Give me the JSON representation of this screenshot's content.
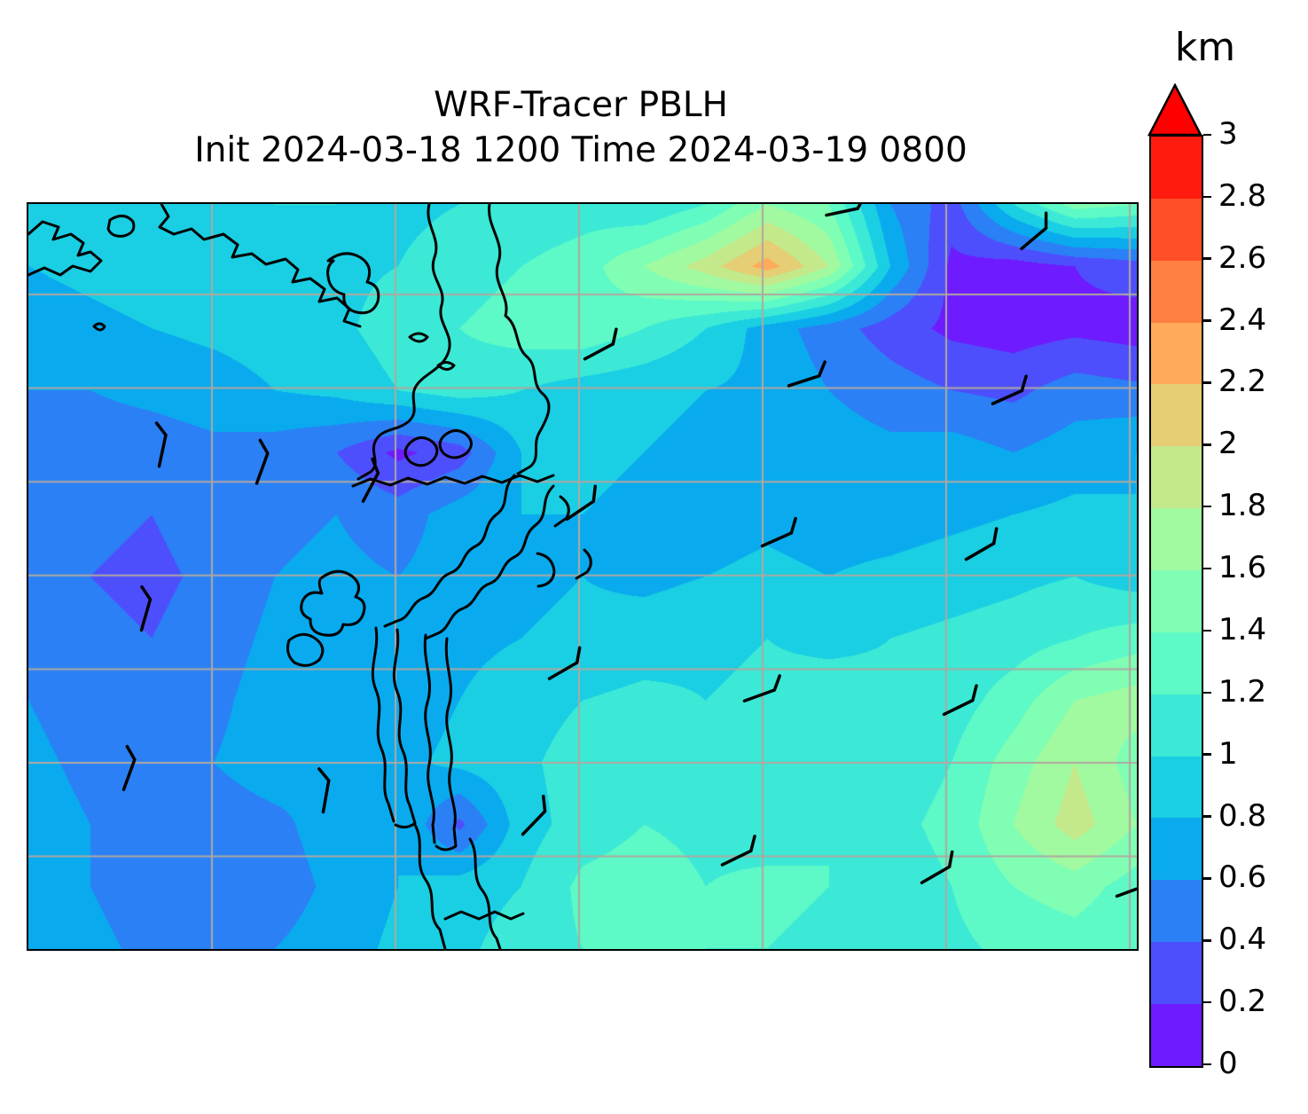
{
  "title": {
    "line1": "WRF-Tracer PBLH",
    "line2": "Init 2024-03-18 1200 Time 2024-03-19 0800"
  },
  "colorbar": {
    "label": "km",
    "min": 0,
    "max": 3,
    "step": 0.2,
    "tick_labels": [
      "0",
      "0.2",
      "0.4",
      "0.6",
      "0.8",
      "1",
      "1.2",
      "1.4",
      "1.6",
      "1.8",
      "2",
      "2.2",
      "2.4",
      "2.6",
      "2.8",
      "3"
    ],
    "colors": [
      "#6E1BFF",
      "#4D4FFC",
      "#2B80F6",
      "#09ABEE",
      "#1ACEE3",
      "#3BE9D6",
      "#5DF9C6",
      "#80FFB4",
      "#A1F9A0",
      "#C3E98B",
      "#E5CE74",
      "#FFAB5B",
      "#FF8042",
      "#FF4F28",
      "#FF1B0D"
    ],
    "over_color": "#FF0000",
    "extend": "max"
  },
  "chart_data": {
    "type": "heatmap",
    "title": "WRF-Tracer PBLH",
    "subtitle": "Init 2024-03-18 1200 Time 2024-03-19 0800",
    "field": "planetary boundary layer height",
    "units": "km",
    "colormap": "rainbow",
    "levels": [
      0,
      0.2,
      0.4,
      0.6,
      0.8,
      1,
      1.2,
      1.4,
      1.6,
      1.8,
      2,
      2.2,
      2.4,
      2.6,
      2.8,
      3
    ],
    "grid_on": true,
    "legend_position": "right-colorbar",
    "grid": {
      "nrows": 13,
      "ncols": 19,
      "values_km": [
        [
          0.95,
          0.9,
          0.85,
          0.9,
          1.0,
          1.0,
          0.95,
          1.0,
          1.05,
          1.1,
          1.0,
          1.2,
          1.6,
          1.4,
          0.6,
          0.3,
          1.0,
          1.5,
          1.4
        ],
        [
          0.8,
          0.85,
          0.9,
          0.95,
          1.0,
          0.95,
          1.0,
          1.1,
          1.2,
          1.3,
          1.6,
          1.9,
          2.3,
          1.8,
          0.8,
          0.15,
          0.1,
          0.2,
          0.3
        ],
        [
          0.7,
          0.75,
          0.8,
          0.85,
          0.9,
          0.95,
          1.1,
          1.2,
          1.3,
          1.35,
          1.2,
          1.0,
          0.7,
          0.5,
          0.3,
          0.15,
          0.1,
          0.15,
          0.1
        ],
        [
          0.6,
          0.6,
          0.65,
          0.7,
          0.8,
          0.85,
          1.0,
          1.1,
          1.0,
          0.9,
          0.85,
          0.8,
          0.75,
          0.6,
          0.5,
          0.4,
          0.35,
          0.5,
          0.45
        ],
        [
          0.55,
          0.5,
          0.5,
          0.55,
          0.5,
          0.4,
          0.15,
          0.3,
          0.8,
          0.85,
          0.8,
          0.75,
          0.8,
          0.7,
          0.65,
          0.7,
          0.6,
          0.7,
          0.8
        ],
        [
          0.5,
          0.45,
          0.4,
          0.5,
          0.55,
          0.6,
          0.5,
          0.7,
          0.8,
          0.8,
          0.75,
          0.7,
          0.75,
          0.7,
          0.7,
          0.75,
          0.8,
          0.85,
          0.8
        ],
        [
          0.5,
          0.4,
          0.35,
          0.45,
          0.6,
          0.65,
          0.6,
          0.7,
          0.75,
          0.8,
          0.75,
          0.8,
          0.85,
          0.8,
          0.85,
          0.9,
          0.95,
          1.0,
          0.9
        ],
        [
          0.55,
          0.45,
          0.4,
          0.5,
          0.65,
          0.7,
          0.65,
          0.75,
          0.8,
          0.85,
          0.9,
          0.95,
          1.0,
          0.95,
          1.0,
          1.05,
          1.1,
          1.2,
          1.3
        ],
        [
          0.6,
          0.5,
          0.45,
          0.55,
          0.7,
          0.75,
          0.7,
          0.8,
          0.9,
          1.0,
          1.05,
          1.0,
          1.05,
          1.1,
          1.05,
          1.1,
          1.3,
          1.6,
          1.7
        ],
        [
          0.65,
          0.55,
          0.5,
          0.6,
          0.7,
          0.6,
          0.75,
          0.85,
          0.95,
          1.1,
          1.1,
          1.05,
          1.1,
          1.15,
          1.1,
          1.2,
          1.5,
          1.8,
          1.5
        ],
        [
          0.7,
          0.6,
          0.55,
          0.5,
          0.55,
          0.7,
          0.8,
          0.35,
          0.9,
          1.1,
          1.2,
          1.15,
          1.1,
          1.2,
          1.15,
          1.25,
          1.6,
          1.9,
          1.6
        ],
        [
          0.7,
          0.6,
          0.5,
          0.45,
          0.5,
          0.65,
          0.8,
          0.9,
          1.0,
          1.25,
          1.3,
          1.2,
          1.25,
          1.2,
          1.1,
          1.2,
          1.4,
          1.5,
          1.3
        ],
        [
          0.75,
          0.65,
          0.55,
          0.5,
          0.6,
          0.7,
          0.85,
          0.95,
          1.1,
          1.2,
          1.25,
          1.2,
          1.2,
          1.15,
          1.1,
          1.15,
          1.25,
          1.3,
          1.2
        ]
      ]
    },
    "gridlines": {
      "color": "#b0a8a0",
      "x_pct": [
        16.56,
        33.12,
        49.68,
        66.24,
        82.8,
        99.36
      ],
      "y_pct": [
        12.14,
        24.71,
        37.29,
        49.86,
        62.43,
        75.0,
        87.57
      ]
    },
    "wind_barbs": [
      {
        "x": 72.0,
        "y": 1.5,
        "a": -12
      },
      {
        "x": 89.6,
        "y": 6.0,
        "a": -40
      },
      {
        "x": 50.2,
        "y": 20.8,
        "a": -28
      },
      {
        "x": 68.6,
        "y": 24.4,
        "a": -18
      },
      {
        "x": 87.0,
        "y": 26.8,
        "a": -24
      },
      {
        "x": 11.8,
        "y": 35.2,
        "a": -78
      },
      {
        "x": 20.6,
        "y": 37.5,
        "a": -70
      },
      {
        "x": 30.2,
        "y": 39.9,
        "a": -62
      },
      {
        "x": 48.6,
        "y": 42.3,
        "a": -34
      },
      {
        "x": 66.2,
        "y": 45.9,
        "a": -24
      },
      {
        "x": 84.6,
        "y": 47.7,
        "a": -30
      },
      {
        "x": 10.2,
        "y": 57.2,
        "a": -74
      },
      {
        "x": 47.0,
        "y": 63.7,
        "a": -30
      },
      {
        "x": 64.6,
        "y": 66.7,
        "a": -20
      },
      {
        "x": 82.6,
        "y": 68.5,
        "a": -26
      },
      {
        "x": 8.6,
        "y": 78.6,
        "a": -70
      },
      {
        "x": 26.6,
        "y": 81.6,
        "a": -80
      },
      {
        "x": 44.6,
        "y": 84.6,
        "a": -46
      },
      {
        "x": 62.6,
        "y": 88.7,
        "a": -26
      },
      {
        "x": 80.6,
        "y": 91.1,
        "a": -30
      },
      {
        "x": 98.2,
        "y": 92.9,
        "a": -20
      }
    ]
  }
}
